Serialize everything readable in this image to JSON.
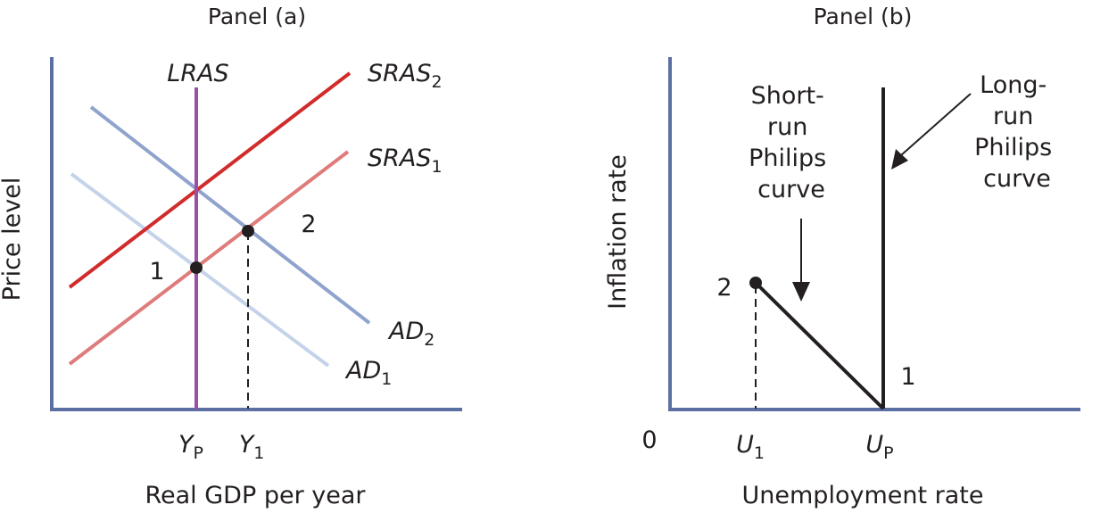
{
  "panel_a": {
    "title": "Panel (a)",
    "ylabel": "Price level",
    "xlabel": "Real GDP per year",
    "curves": {
      "lras": "LRAS",
      "sras2": "SRAS",
      "sras2_sub": "2",
      "sras1": "SRAS",
      "sras1_sub": "1",
      "ad2": "AD",
      "ad2_sub": "2",
      "ad1": "AD",
      "ad1_sub": "1"
    },
    "points": {
      "p1": "1",
      "p2": "2"
    },
    "ticks": {
      "yp": "Y",
      "yp_sub": "P",
      "y1": "Y",
      "y1_sub": "1"
    },
    "colors": {
      "frame": "#5b6fa3",
      "lras": "#9b4fa6",
      "sras2": "#d12b2b",
      "sras1": "#e07b7b",
      "ad2": "#8fa3cc",
      "ad1": "#c5d3ea"
    }
  },
  "panel_b": {
    "title": "Panel (b)",
    "ylabel": "Inflation rate",
    "xlabel": "Unemployment rate",
    "origin": "0",
    "annotations": {
      "short_run": [
        "Short-",
        "run",
        "Philips",
        "curve"
      ],
      "long_run": [
        "Long-",
        "run",
        "Philips",
        "curve"
      ]
    },
    "points": {
      "p2": "2",
      "p1": "1"
    },
    "ticks": {
      "u1": "U",
      "u1_sub": "1",
      "up": "U",
      "up_sub": "P"
    },
    "colors": {
      "frame": "#5b6fa3",
      "curves": "#231f20"
    }
  }
}
